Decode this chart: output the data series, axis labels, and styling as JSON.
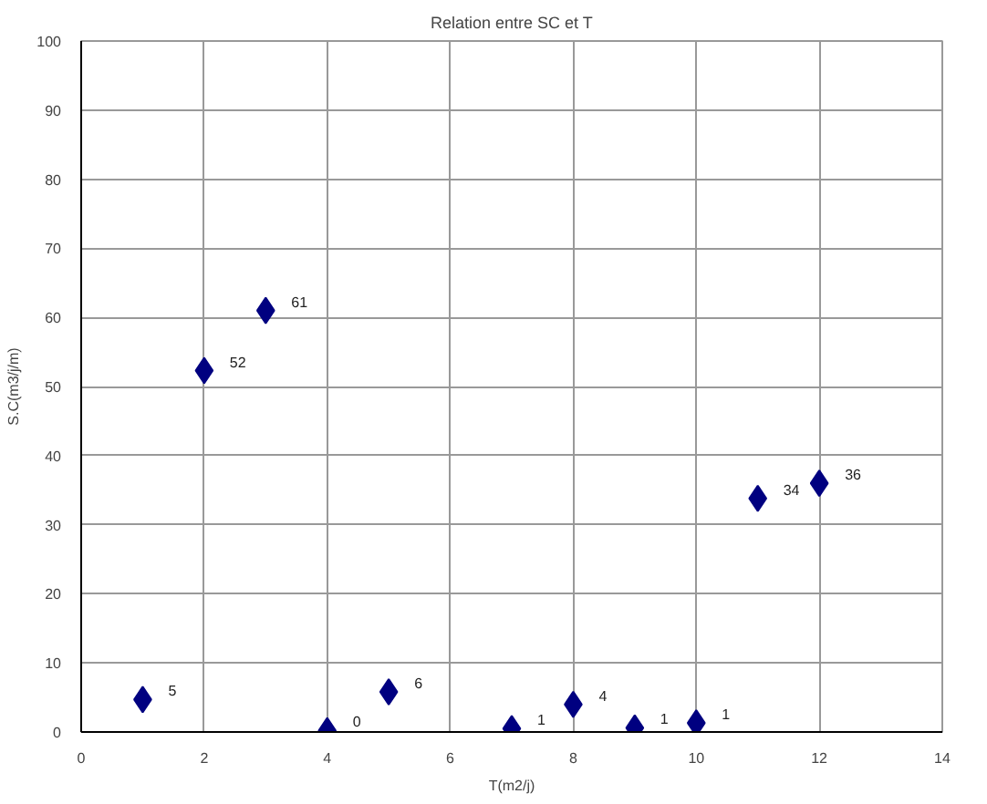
{
  "chart_data": {
    "type": "scatter",
    "title": "Relation entre SC et T",
    "xlabel": "T(m2/j)",
    "ylabel": "S.C(m3/j/m)",
    "x": [
      1,
      2,
      3,
      4,
      5,
      7,
      8,
      9,
      10,
      11,
      12
    ],
    "series": [
      {
        "color": "#000080",
        "values": [
          4.7,
          52.3,
          61,
          0.2,
          5.8,
          0.5,
          4,
          0.6,
          1.3,
          33.8,
          36
        ],
        "value_labels": [
          "5",
          "52",
          "61",
          "0",
          "6",
          "1",
          "4",
          "1",
          "1",
          "34",
          "36"
        ]
      }
    ],
    "xlim": [
      0,
      14
    ],
    "xticks": [
      0,
      2,
      4,
      6,
      8,
      10,
      12,
      14
    ],
    "ylim": [
      0,
      100
    ],
    "yticks": [
      0,
      10,
      20,
      30,
      40,
      50,
      60,
      70,
      80,
      90,
      100
    ],
    "grid": true,
    "marker": "diamond"
  }
}
